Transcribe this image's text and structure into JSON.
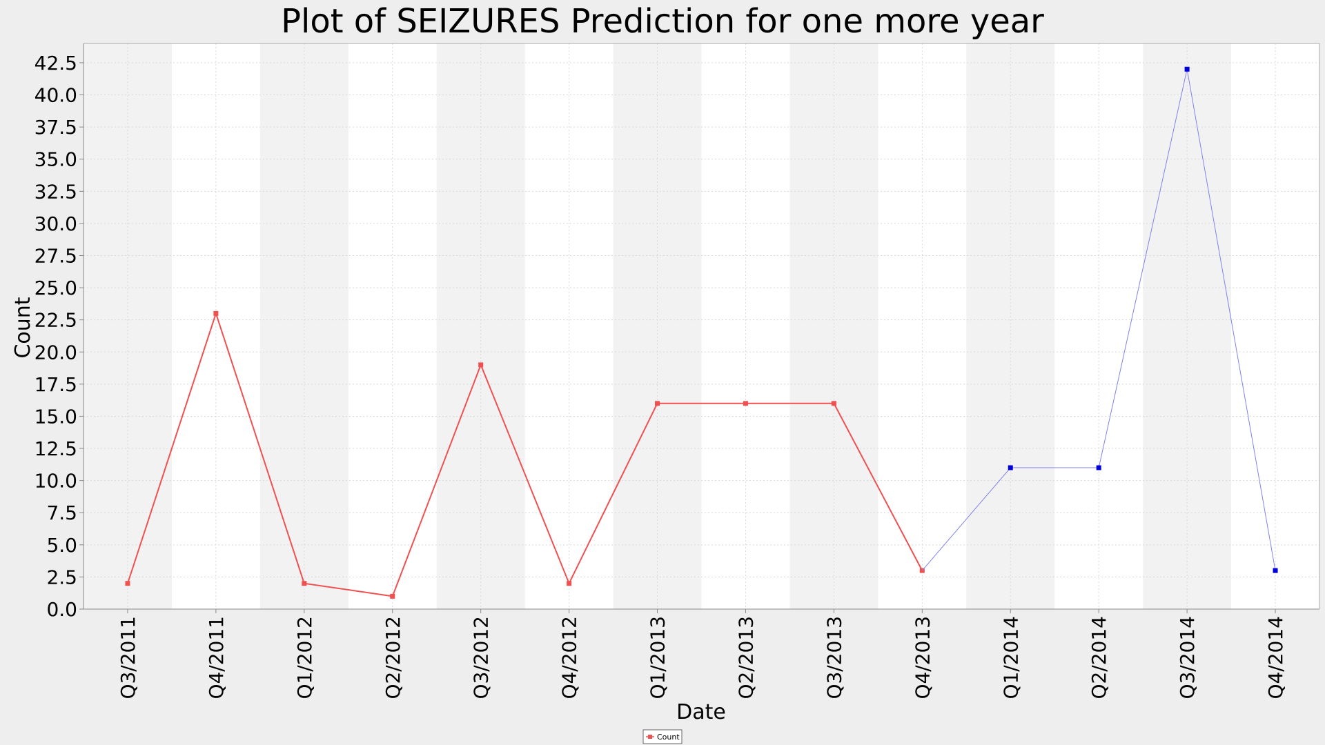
{
  "chart_data": {
    "type": "line",
    "title": "Plot of SEIZURES Prediction for one more year",
    "xlabel": "Date",
    "ylabel": "Count",
    "categories": [
      "Q3/2011",
      "Q4/2011",
      "Q1/2012",
      "Q2/2012",
      "Q3/2012",
      "Q4/2012",
      "Q1/2013",
      "Q2/2013",
      "Q3/2013",
      "Q4/2013",
      "Q1/2014",
      "Q2/2014",
      "Q3/2014",
      "Q4/2014"
    ],
    "y_ticks": [
      "0.0",
      "2.5",
      "5.0",
      "7.5",
      "10.0",
      "12.5",
      "15.0",
      "17.5",
      "20.0",
      "22.5",
      "25.0",
      "27.5",
      "30.0",
      "32.5",
      "35.0",
      "37.5",
      "40.0",
      "42.5"
    ],
    "ylim": [
      0,
      44
    ],
    "grid": true,
    "legend_position": "bottom-center",
    "series": [
      {
        "name": "Count",
        "color": "#f05050",
        "points": [
          {
            "x": "Q3/2011",
            "y": 2
          },
          {
            "x": "Q4/2011",
            "y": 23
          },
          {
            "x": "Q1/2012",
            "y": 2
          },
          {
            "x": "Q2/2012",
            "y": 1
          },
          {
            "x": "Q3/2012",
            "y": 19
          },
          {
            "x": "Q4/2012",
            "y": 2
          },
          {
            "x": "Q1/2013",
            "y": 16
          },
          {
            "x": "Q2/2013",
            "y": 16
          },
          {
            "x": "Q3/2013",
            "y": 16
          },
          {
            "x": "Q4/2013",
            "y": 3
          }
        ]
      },
      {
        "color": "#0000dd",
        "line_color": "#8080ee",
        "points": [
          {
            "x": "Q4/2013",
            "y": 3,
            "marker": false
          },
          {
            "x": "Q1/2014",
            "y": 11
          },
          {
            "x": "Q2/2014",
            "y": 11
          },
          {
            "x": "Q3/2014",
            "y": 42
          },
          {
            "x": "Q4/2014",
            "y": 3
          }
        ]
      }
    ]
  }
}
